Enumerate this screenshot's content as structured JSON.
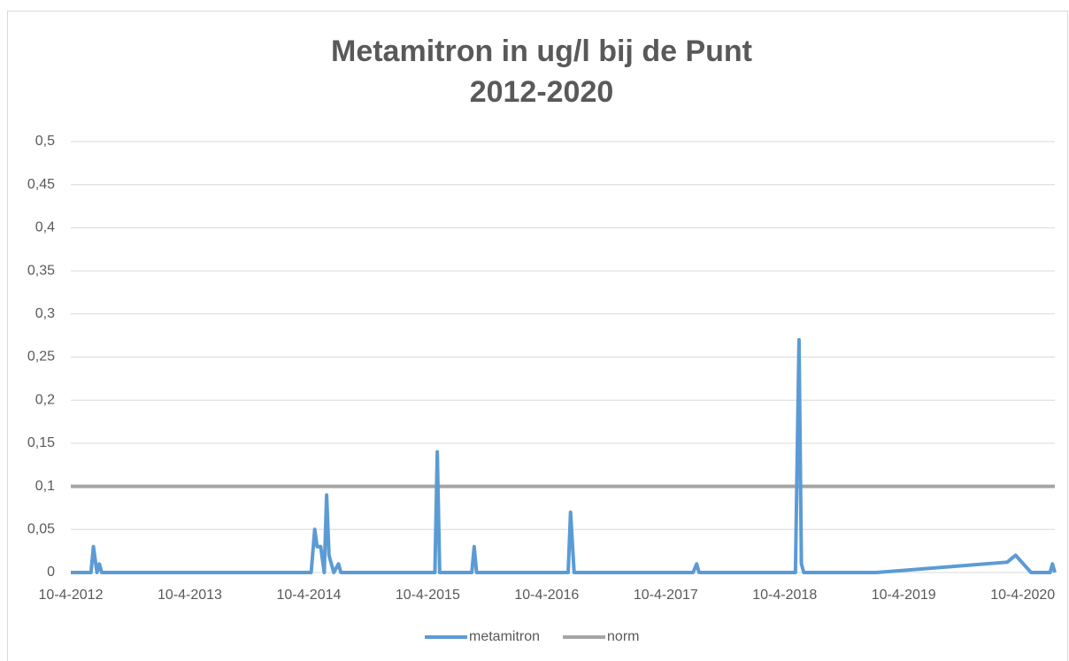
{
  "chart_data": {
    "type": "line",
    "title": [
      "Metamitron in ug/l bij de Punt",
      "2012-2020"
    ],
    "xlim": [
      2012.27,
      2020.54
    ],
    "xticks": [
      {
        "value": 2012.27,
        "label": "10-4-2012"
      },
      {
        "value": 2013.27,
        "label": "10-4-2013"
      },
      {
        "value": 2014.27,
        "label": "10-4-2014"
      },
      {
        "value": 2015.27,
        "label": "10-4-2015"
      },
      {
        "value": 2016.27,
        "label": "10-4-2016"
      },
      {
        "value": 2017.27,
        "label": "10-4-2017"
      },
      {
        "value": 2018.27,
        "label": "10-4-2018"
      },
      {
        "value": 2019.27,
        "label": "10-4-2019"
      },
      {
        "value": 2020.27,
        "label": "10-4-2020"
      }
    ],
    "ylim": [
      0,
      0.5
    ],
    "yticks": [
      0,
      {
        "value": 0.05,
        "label": "0,05"
      },
      {
        "value": 0.1,
        "label": "0,1"
      },
      {
        "value": 0.15,
        "label": "0,15"
      },
      {
        "value": 0.2,
        "label": "0,2"
      },
      {
        "value": 0.25,
        "label": "0,25"
      },
      {
        "value": 0.3,
        "label": "0,3"
      },
      {
        "value": 0.35,
        "label": "0,35"
      },
      {
        "value": 0.4,
        "label": "0,4"
      },
      {
        "value": 0.45,
        "label": "0,45"
      },
      {
        "value": 0.5,
        "label": "0,5"
      }
    ],
    "grid": true,
    "legend": "bottom",
    "series": [
      {
        "name": "metamitron",
        "color": "#5b9bd5",
        "x": [
          2012.27,
          2012.44,
          2012.46,
          2012.49,
          2012.51,
          2012.53,
          2014.29,
          2014.32,
          2014.34,
          2014.37,
          2014.4,
          2014.42,
          2014.44,
          2014.48,
          2014.52,
          2014.54,
          2015.33,
          2015.35,
          2015.37,
          2015.64,
          2015.66,
          2015.68,
          2016.45,
          2016.47,
          2016.5,
          2017.5,
          2017.53,
          2017.55,
          2018.36,
          2018.39,
          2018.41,
          2018.43,
          2019.04,
          2020.14,
          2020.21,
          2020.34,
          2020.5,
          2020.52,
          2020.54
        ],
        "values": [
          0,
          0,
          0.03,
          0,
          0.01,
          0,
          0,
          0.05,
          0.03,
          0.03,
          0,
          0.09,
          0.02,
          0,
          0.01,
          0,
          0,
          0.14,
          0,
          0,
          0.03,
          0,
          0,
          0.07,
          0,
          0,
          0.01,
          0,
          0,
          0.27,
          0.01,
          0,
          0,
          0.012,
          0.02,
          0,
          0,
          0.01,
          0
        ]
      },
      {
        "name": "norm",
        "color": "#a5a5a5",
        "x": [
          2012.27,
          2020.54
        ],
        "values": [
          0.1,
          0.1
        ]
      }
    ]
  }
}
